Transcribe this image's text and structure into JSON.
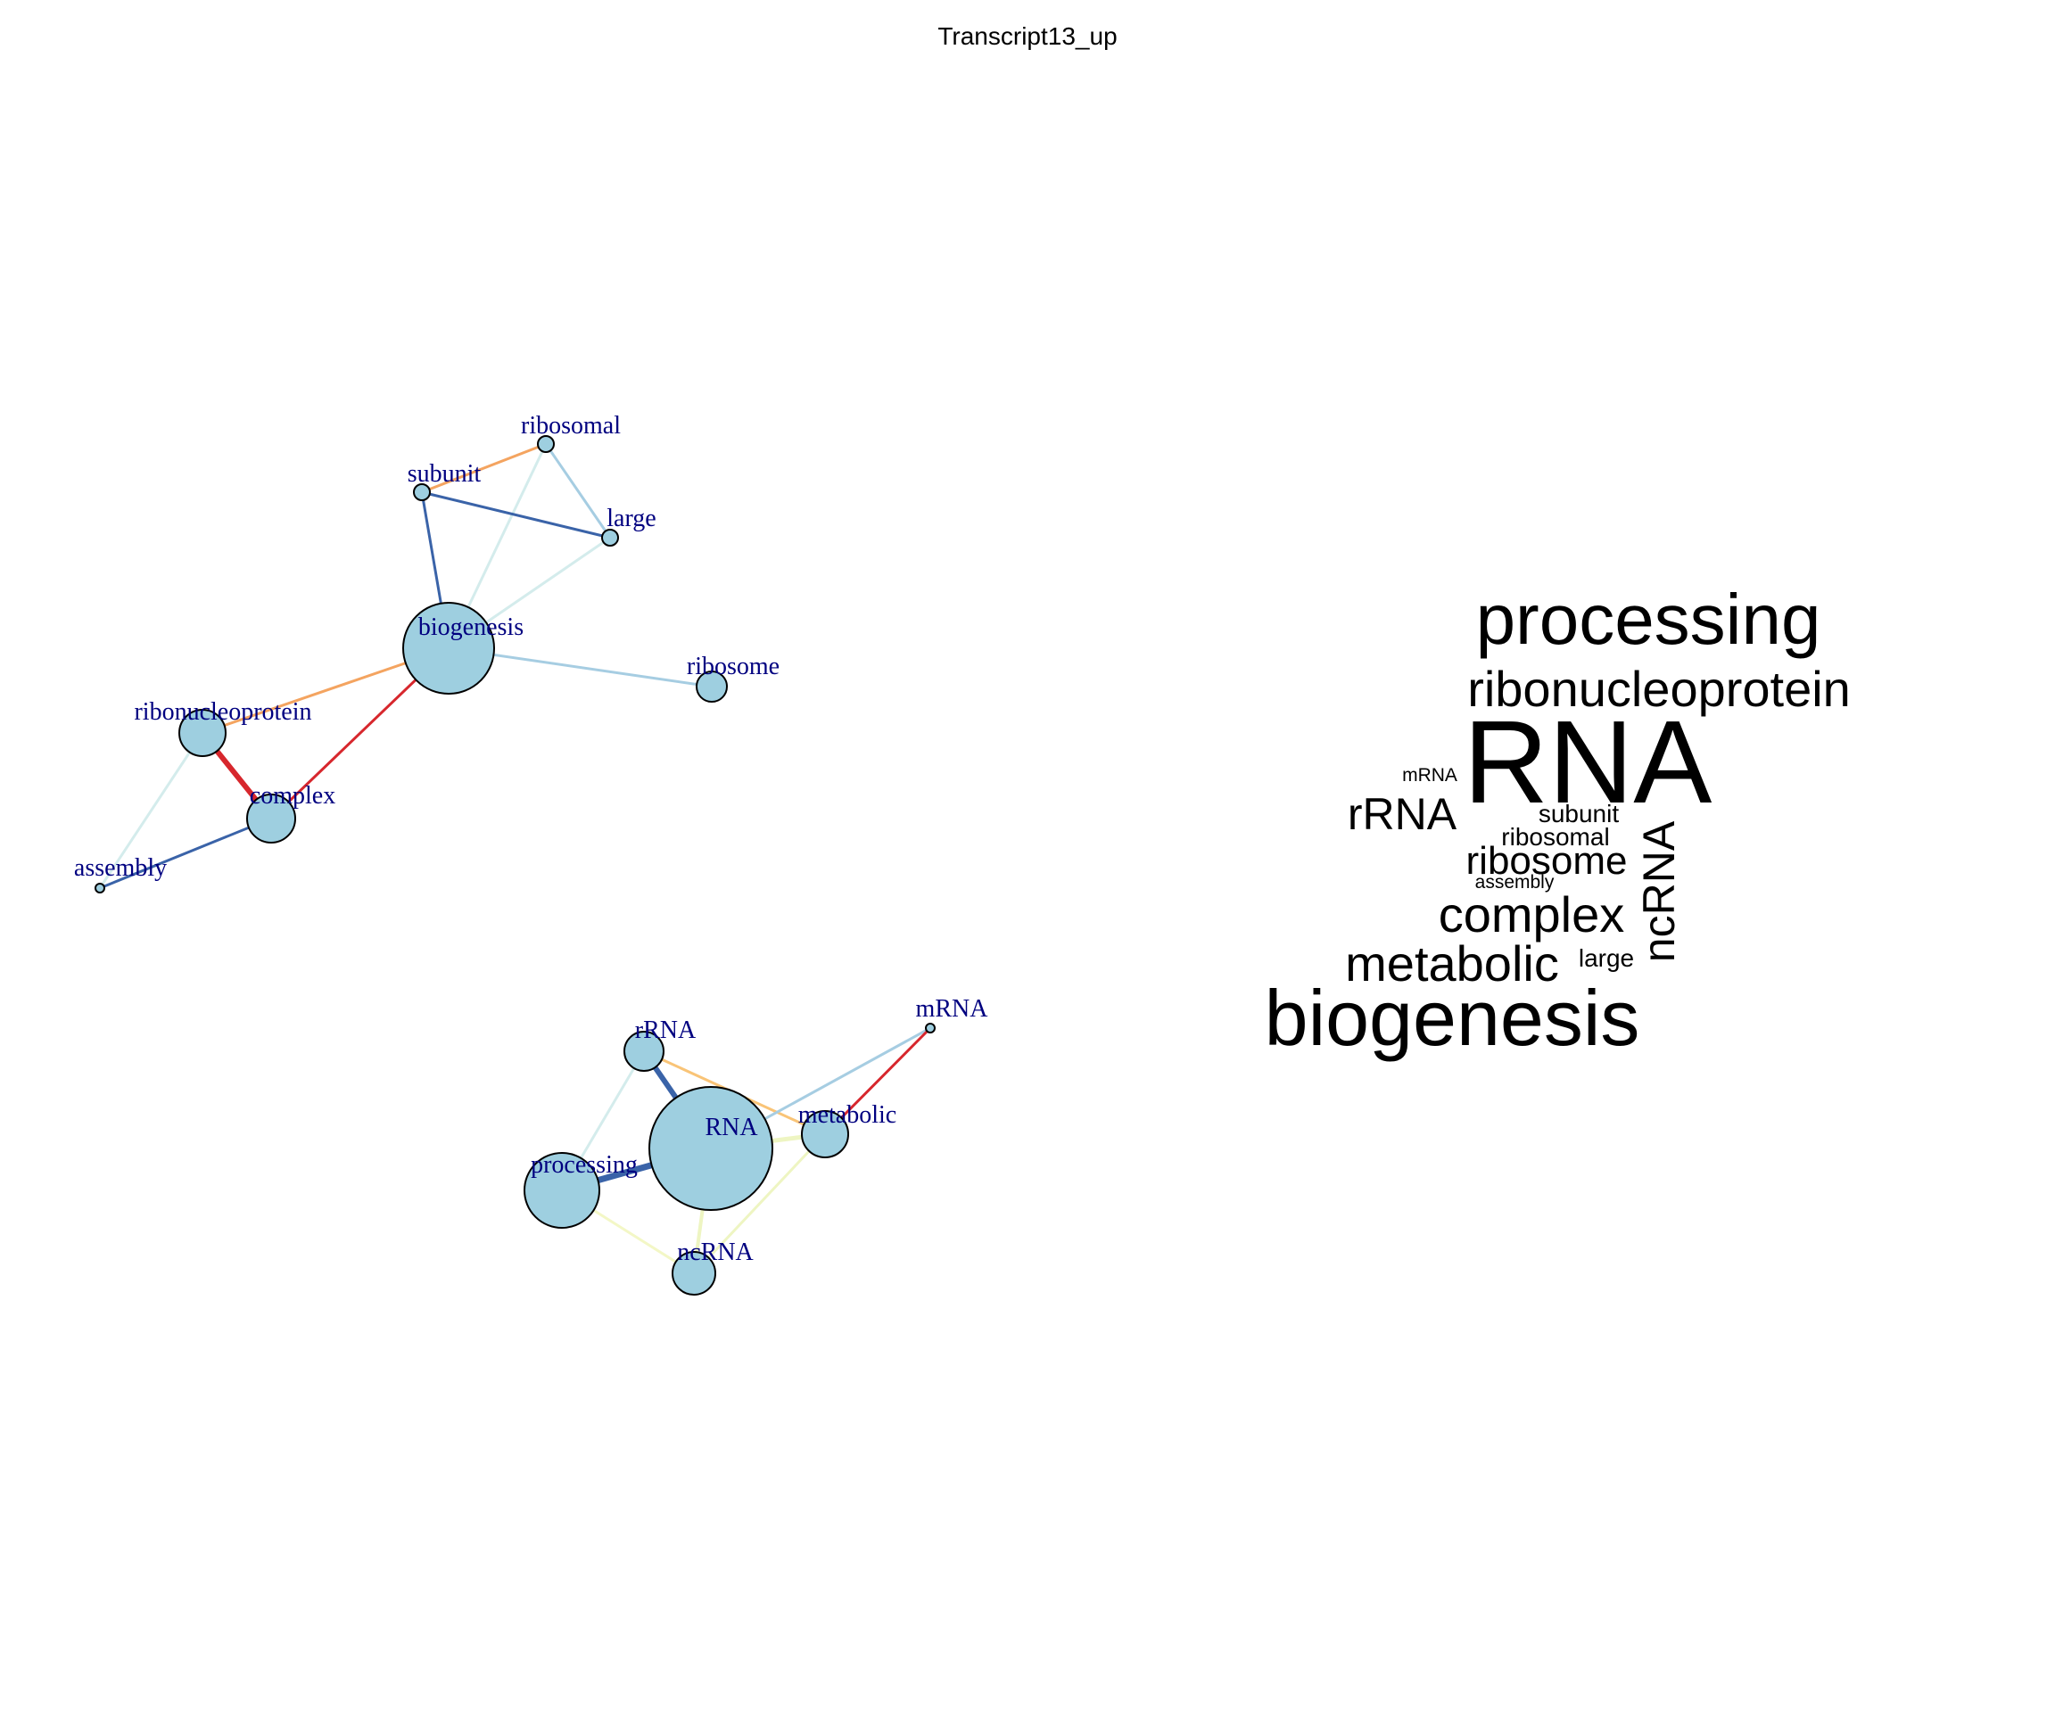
{
  "title": "Transcript13_up",
  "colors": {
    "node_fill": "#9ecfe0",
    "label": "#000080"
  },
  "network": {
    "nodes": [
      {
        "id": "ribosomal",
        "label": "ribosomal"
      },
      {
        "id": "subunit",
        "label": "subunit"
      },
      {
        "id": "large",
        "label": "large"
      },
      {
        "id": "biogenesis",
        "label": "biogenesis"
      },
      {
        "id": "ribosome",
        "label": "ribosome"
      },
      {
        "id": "ribonucleoprotein",
        "label": "ribonucleoprotein"
      },
      {
        "id": "complex",
        "label": "complex"
      },
      {
        "id": "assembly",
        "label": "assembly"
      },
      {
        "id": "mRNA",
        "label": "mRNA"
      },
      {
        "id": "rRNA",
        "label": "rRNA"
      },
      {
        "id": "RNA",
        "label": "RNA"
      },
      {
        "id": "metabolic",
        "label": "metabolic"
      },
      {
        "id": "processing",
        "label": "processing"
      },
      {
        "id": "ncRNA",
        "label": "ncRNA"
      }
    ],
    "edges": [
      {
        "source": "subunit",
        "target": "ribosomal",
        "color": "#f4a460"
      },
      {
        "source": "ribosomal",
        "target": "large",
        "color": "#a6cde2"
      },
      {
        "source": "ribosomal",
        "target": "biogenesis",
        "color": "#d4ecec"
      },
      {
        "source": "subunit",
        "target": "large",
        "color": "#3a63a8"
      },
      {
        "source": "subunit",
        "target": "biogenesis",
        "color": "#3a63a8"
      },
      {
        "source": "large",
        "target": "biogenesis",
        "color": "#d4ecec"
      },
      {
        "source": "biogenesis",
        "target": "ribosome",
        "color": "#a6cde2"
      },
      {
        "source": "biogenesis",
        "target": "ribonucleoprotein",
        "color": "#f4a460"
      },
      {
        "source": "biogenesis",
        "target": "complex",
        "color": "#d7272d"
      },
      {
        "source": "ribonucleoprotein",
        "target": "complex",
        "color": "#d7272d"
      },
      {
        "source": "ribonucleoprotein",
        "target": "assembly",
        "color": "#d4ecec"
      },
      {
        "source": "complex",
        "target": "assembly",
        "color": "#3a63a8"
      },
      {
        "source": "rRNA",
        "target": "RNA",
        "color": "#3a63a8"
      },
      {
        "source": "rRNA",
        "target": "metabolic",
        "color": "#f9c477"
      },
      {
        "source": "rRNA",
        "target": "processing",
        "color": "#d4ecec"
      },
      {
        "source": "RNA",
        "target": "mRNA",
        "color": "#a6cde2"
      },
      {
        "source": "metabolic",
        "target": "mRNA",
        "color": "#d7272d"
      },
      {
        "source": "RNA",
        "target": "processing",
        "color": "#3a63a8"
      },
      {
        "source": "RNA",
        "target": "metabolic",
        "color": "#eef5c2"
      },
      {
        "source": "RNA",
        "target": "ncRNA",
        "color": "#eef5c2"
      },
      {
        "source": "processing",
        "target": "ncRNA",
        "color": "#f3f7c6"
      },
      {
        "source": "metabolic",
        "target": "ncRNA",
        "color": "#eef5c2"
      }
    ]
  },
  "wordcloud": [
    {
      "text": "processing"
    },
    {
      "text": "ribonucleoprotein"
    },
    {
      "text": "RNA"
    },
    {
      "text": "mRNA"
    },
    {
      "text": "rRNA"
    },
    {
      "text": "subunit"
    },
    {
      "text": "ribosomal"
    },
    {
      "text": "ribosome"
    },
    {
      "text": "assembly"
    },
    {
      "text": "complex"
    },
    {
      "text": "metabolic"
    },
    {
      "text": "large"
    },
    {
      "text": "ncRNA"
    },
    {
      "text": "biogenesis"
    }
  ]
}
